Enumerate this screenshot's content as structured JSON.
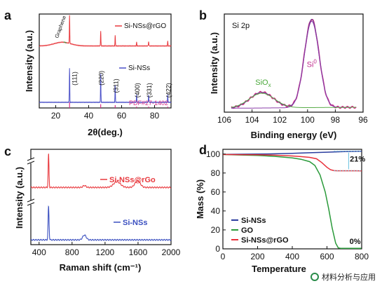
{
  "chart_data": [
    {
      "panel": "a",
      "type": "line",
      "xlabel": "2θ(deg.)",
      "ylabel": "Intensity (a.u.)",
      "xlim": [
        10,
        90
      ],
      "xticks": [
        20,
        40,
        60,
        80
      ],
      "yticks": [],
      "grid": false,
      "legend_position": "top-right",
      "series": [
        {
          "name": "Si-NSs@rGO",
          "color": "#e8383d",
          "baseline": 0.66,
          "broad_hump": {
            "center": 24,
            "width": 7,
            "height": 0.04
          },
          "peaks": [
            {
              "x": 28.4,
              "h": 0.3
            },
            {
              "x": 47.3,
              "h": 0.16
            },
            {
              "x": 56.1,
              "h": 0.11
            },
            {
              "x": 69.1,
              "h": 0.04
            },
            {
              "x": 76.4,
              "h": 0.05
            },
            {
              "x": 88.0,
              "h": 0.05
            }
          ]
        },
        {
          "name": "Si-NSs",
          "color": "#4a50c8",
          "baseline": 0.06,
          "peaks": [
            {
              "x": 28.4,
              "h": 0.36
            },
            {
              "x": 47.3,
              "h": 0.3
            },
            {
              "x": 56.1,
              "h": 0.18
            },
            {
              "x": 69.1,
              "h": 0.08
            },
            {
              "x": 76.4,
              "h": 0.08
            },
            {
              "x": 88.0,
              "h": 0.08
            }
          ]
        }
      ],
      "reference": {
        "label": "PDF#27-1402",
        "color": "#d8318a",
        "lines": [
          {
            "x": 28.4,
            "h": 0.06
          },
          {
            "x": 47.3,
            "h": 0.04
          },
          {
            "x": 56.1,
            "h": 0.03
          },
          {
            "x": 69.1,
            "h": 0.015
          },
          {
            "x": 76.4,
            "h": 0.015
          },
          {
            "x": 88.0,
            "h": 0.015
          }
        ]
      },
      "annotations": [
        {
          "text": "Graphene",
          "x": 24,
          "y": 0.74
        },
        {
          "text": "(111)",
          "x": 31,
          "y": 0.24
        },
        {
          "text": "(220)",
          "x": 47.3,
          "y": 0.24
        },
        {
          "text": "(311)",
          "x": 56.1,
          "y": 0.16
        },
        {
          "text": "(400)",
          "x": 69.1,
          "y": 0.11
        },
        {
          "text": "(331)",
          "x": 76.4,
          "y": 0.11
        },
        {
          "text": "(422)",
          "x": 88.0,
          "y": 0.11
        }
      ]
    },
    {
      "panel": "b",
      "type": "line",
      "title": "Si 2p",
      "xlabel": "Binding energy (eV)",
      "ylabel": "Intensity (a.u.)",
      "xlim": [
        106,
        96
      ],
      "xticks": [
        106,
        104,
        102,
        100,
        98,
        96
      ],
      "yticks": [],
      "grid": false,
      "series": [
        {
          "name": "raw",
          "color": "#d8318a",
          "baseline": 0.04,
          "components": [
            {
              "center": 99.7,
              "width": 0.75,
              "height": 0.9
            },
            {
              "center": 103.3,
              "width": 1.2,
              "height": 0.16
            }
          ]
        },
        {
          "name": "fit",
          "color": "#6a3b8c",
          "baseline": 0.04,
          "components": [
            {
              "center": 99.7,
              "width": 0.75,
              "height": 0.9
            },
            {
              "center": 103.3,
              "width": 1.2,
              "height": 0.16
            }
          ]
        },
        {
          "name": "Si0 component",
          "color": "#8a3ca8",
          "baseline": 0.04,
          "components": [
            {
              "center": 99.7,
              "width": 0.75,
              "height": 0.88
            }
          ]
        },
        {
          "name": "SiOx component",
          "color": "#5aad4a",
          "baseline": 0.04,
          "components": [
            {
              "center": 103.3,
              "width": 1.3,
              "height": 0.15
            }
          ]
        }
      ],
      "annotations": [
        {
          "text": "Si",
          "sup": "0",
          "x": 99.7,
          "y": 0.46,
          "color": "#c02a8c"
        },
        {
          "text": "SiO",
          "sub": "x",
          "x": 103.2,
          "y": 0.28,
          "color": "#4aa83a"
        }
      ]
    },
    {
      "panel": "c",
      "type": "line",
      "xlabel": "Raman shift (cm⁻¹)",
      "ylabel": "Intensity (a.u.)",
      "xlim": [
        300,
        2000
      ],
      "xticks": [
        400,
        800,
        1200,
        1600,
        2000
      ],
      "yticks": [],
      "axis_break": true,
      "grid": false,
      "series": [
        {
          "name": "Si-NSs@rGo",
          "color": "#e8383d",
          "baseline": 0.6,
          "peaks": [
            {
              "x": 515,
              "w": 7,
              "h": 0.35
            },
            {
              "x": 950,
              "w": 25,
              "h": 0.02
            },
            {
              "x": 1345,
              "w": 60,
              "h": 0.06
            },
            {
              "x": 1595,
              "w": 45,
              "h": 0.07
            }
          ]
        },
        {
          "name": "Si-NSs",
          "color": "#3a4fc0",
          "baseline": 0.05,
          "peaks": [
            {
              "x": 515,
              "w": 8,
              "h": 0.35
            },
            {
              "x": 950,
              "w": 30,
              "h": 0.05
            }
          ]
        }
      ]
    },
    {
      "panel": "d",
      "type": "line",
      "xlabel": "Temperature",
      "ylabel": "Mass (%)",
      "xlim": [
        0,
        800
      ],
      "ylim": [
        0,
        105
      ],
      "xticks": [
        0,
        200,
        400,
        600,
        800
      ],
      "yticks": [
        0,
        20,
        40,
        60,
        80,
        100
      ],
      "grid": false,
      "legend_position": "bottom-left",
      "series": [
        {
          "name": "Si-NSs",
          "color": "#2b3d9e",
          "x": [
            0,
            100,
            200,
            300,
            400,
            500,
            600,
            700,
            800
          ],
          "y": [
            99.7,
            99.8,
            100,
            100.3,
            100.8,
            101.4,
            102.0,
            102.6,
            103
          ]
        },
        {
          "name": "GO",
          "color": "#2a9a3a",
          "x": [
            0,
            100,
            200,
            300,
            400,
            450,
            500,
            530,
            560,
            590,
            610,
            630,
            650,
            665,
            680,
            700,
            800
          ],
          "y": [
            99.5,
            99,
            98.5,
            97.5,
            96,
            94.5,
            92,
            88,
            78,
            60,
            42,
            22,
            6,
            1,
            0.5,
            0.5,
            0.5
          ]
        },
        {
          "name": "Si-NSs@rGO",
          "color": "#e8303a",
          "x": [
            0,
            100,
            200,
            300,
            400,
            450,
            500,
            540,
            570,
            600,
            620,
            640,
            660,
            700,
            800
          ],
          "y": [
            99.5,
            99.4,
            99.2,
            98.8,
            98,
            97.3,
            96.5,
            95,
            91,
            86,
            83.5,
            82.5,
            82.4,
            82.4,
            82.3
          ]
        }
      ],
      "annotations": [
        {
          "text": "21%",
          "x": 732,
          "y": 92
        },
        {
          "text": "0%",
          "x": 730,
          "y": 5
        }
      ]
    }
  ],
  "watermark": {
    "text": "材料分析与应用",
    "icon": "wechat-logo-icon"
  }
}
